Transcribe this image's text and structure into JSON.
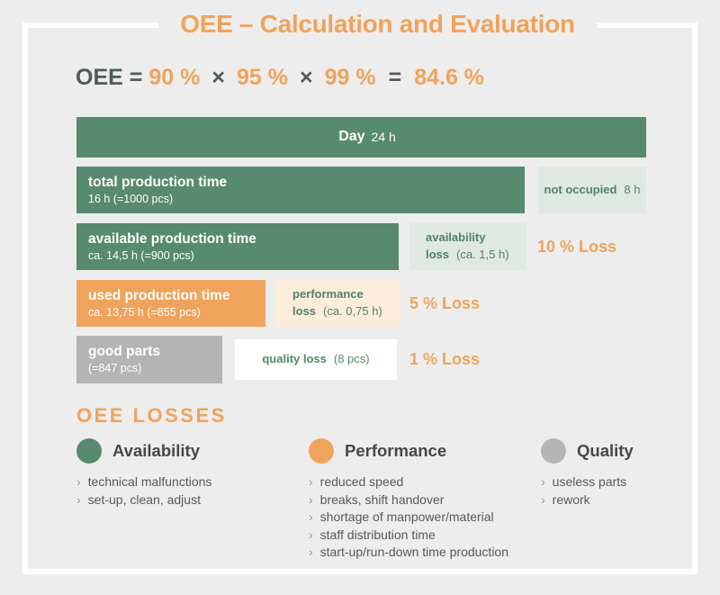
{
  "title": "OEE – Calculation and Evaluation",
  "colors": {
    "background": "#ededed",
    "frame": "#ffffff",
    "accent_orange": "#f0a35c",
    "bar_green": "#578a6e",
    "bar_green_light": "#dfe9e2",
    "bar_orange": "#f0a35c",
    "bar_orange_light": "#fcedda",
    "bar_gray": "#b4b4b4",
    "text_dark": "#4f5b57",
    "text_green": "#54806b"
  },
  "formula": {
    "label": "OEE",
    "eq1": "=",
    "availability": "90 %",
    "times1": "×",
    "performance": "95 %",
    "times2": "×",
    "quality": "99 %",
    "eq2": "=",
    "result": "84.6 %"
  },
  "rows": [
    {
      "title": "Day",
      "subtitle": "24 h"
    },
    {
      "title": "total production time",
      "subtitle": "16 h (=1000 pcs)",
      "side_bold": "not occupied",
      "side_value": "8 h"
    },
    {
      "title": "available production time",
      "subtitle": "ca. 14,5 h (=900 pcs)",
      "loss_line1": "availability",
      "loss_bold": "loss",
      "loss_detail": "(ca. 1,5 h)",
      "loss_pct": "10 % Loss"
    },
    {
      "title": "used production time",
      "subtitle": "ca. 13,75 h (=855 pcs)",
      "loss_line1": "performance",
      "loss_bold": "loss",
      "loss_detail": "(ca. 0,75 h)",
      "loss_pct": "5 % Loss"
    },
    {
      "title": "good parts",
      "subtitle": "(=847 pcs)",
      "loss_bold": "quality loss",
      "loss_detail": "(8 pcs)",
      "loss_pct": "1 % Loss"
    }
  ],
  "losses": {
    "heading": "OEE LOSSES",
    "bullet": "›",
    "categories": [
      {
        "label": "Availability",
        "color": "#578a6e",
        "items": [
          "technical malfunctions",
          "set-up, clean, adjust"
        ]
      },
      {
        "label": "Performance",
        "color": "#f0a35c",
        "items": [
          "reduced speed",
          "breaks, shift handover",
          "shortage of manpower/material",
          "staff distribution time",
          "start-up/run-down time production"
        ]
      },
      {
        "label": "Quality",
        "color": "#b5b5b5",
        "items": [
          "useless parts",
          "rework"
        ]
      }
    ]
  },
  "chart_data": {
    "type": "bar",
    "orientation": "horizontal",
    "title": "OEE – Calculation and Evaluation",
    "unit": "hours",
    "x_max": 24,
    "bars": [
      {
        "label": "Day",
        "hours": 24
      },
      {
        "label": "total production time",
        "hours": 16,
        "pieces": 1000,
        "rest": {
          "label": "not occupied",
          "hours": 8
        }
      },
      {
        "label": "available production time",
        "hours": 14.5,
        "pieces": 900,
        "loss": {
          "label": "availability loss",
          "hours": 1.5,
          "percent": 10
        }
      },
      {
        "label": "used production time",
        "hours": 13.75,
        "pieces": 855,
        "loss": {
          "label": "performance loss",
          "hours": 0.75,
          "percent": 5
        }
      },
      {
        "label": "good parts",
        "pieces": 847,
        "loss": {
          "label": "quality loss",
          "pieces": 8,
          "percent": 1
        }
      }
    ],
    "formula": {
      "availability_pct": 90,
      "performance_pct": 95,
      "quality_pct": 99,
      "oee_pct": 84.6
    },
    "legend": [
      {
        "label": "Availability",
        "color": "#578a6e"
      },
      {
        "label": "Performance",
        "color": "#f0a35c"
      },
      {
        "label": "Quality",
        "color": "#b5b5b5"
      }
    ],
    "legend_position": "bottom"
  }
}
